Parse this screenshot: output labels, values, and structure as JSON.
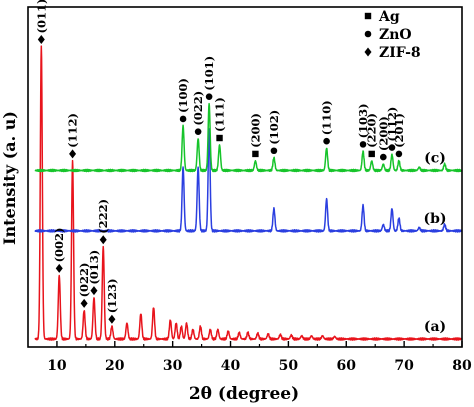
{
  "chart_data": {
    "type": "line",
    "title": "",
    "xlabel": "2θ (degree)",
    "ylabel": "Intensity (a. u)",
    "xlim": [
      5,
      80
    ],
    "xticks": [
      10,
      20,
      30,
      40,
      50,
      60,
      70,
      80
    ],
    "yticks": [],
    "grid": false,
    "legend": {
      "placement": "top-right",
      "items": [
        {
          "marker": "square",
          "label": "Ag"
        },
        {
          "marker": "circle",
          "label": "ZnO"
        },
        {
          "marker": "diamond",
          "label": "ZIF-8"
        }
      ]
    },
    "series": [
      {
        "label": "(a)",
        "color": "#e8141c",
        "baseline": 0.0,
        "peaks": [
          [
            7.3,
            0.92
          ],
          [
            10.4,
            0.2
          ],
          [
            12.7,
            0.56
          ],
          [
            14.7,
            0.09
          ],
          [
            16.4,
            0.13
          ],
          [
            18.0,
            0.29
          ],
          [
            19.5,
            0.04
          ],
          [
            22.1,
            0.05
          ],
          [
            24.5,
            0.08
          ],
          [
            26.7,
            0.1
          ],
          [
            29.6,
            0.06
          ],
          [
            30.6,
            0.05
          ],
          [
            31.5,
            0.04
          ],
          [
            32.4,
            0.05
          ],
          [
            33.5,
            0.03
          ],
          [
            34.8,
            0.04
          ],
          [
            36.5,
            0.03
          ],
          [
            37.8,
            0.03
          ],
          [
            39.6,
            0.025
          ],
          [
            41.5,
            0.02
          ],
          [
            43.0,
            0.02
          ],
          [
            44.7,
            0.018
          ],
          [
            46.5,
            0.016
          ],
          [
            48.6,
            0.014
          ],
          [
            50.5,
            0.012
          ],
          [
            52.3,
            0.01
          ],
          [
            54.0,
            0.01
          ],
          [
            55.9,
            0.01
          ],
          [
            58.0,
            0.008
          ]
        ]
      },
      {
        "label": "(b)",
        "color": "#2b3fe0",
        "baseline": 0.34,
        "peaks": [
          [
            31.8,
            0.2
          ],
          [
            34.4,
            0.2
          ],
          [
            36.3,
            0.32
          ],
          [
            47.5,
            0.07
          ],
          [
            56.6,
            0.1
          ],
          [
            62.9,
            0.08
          ],
          [
            66.4,
            0.02
          ],
          [
            67.9,
            0.07
          ],
          [
            69.1,
            0.04
          ],
          [
            72.6,
            0.01
          ],
          [
            77.0,
            0.02
          ]
        ]
      },
      {
        "label": "(c)",
        "color": "#17c42b",
        "baseline": 0.53,
        "peaks": [
          [
            31.8,
            0.14
          ],
          [
            34.4,
            0.1
          ],
          [
            36.3,
            0.21
          ],
          [
            38.1,
            0.08
          ],
          [
            44.3,
            0.03
          ],
          [
            47.5,
            0.04
          ],
          [
            56.6,
            0.07
          ],
          [
            62.9,
            0.06
          ],
          [
            64.4,
            0.03
          ],
          [
            66.4,
            0.02
          ],
          [
            67.9,
            0.05
          ],
          [
            69.1,
            0.03
          ],
          [
            72.6,
            0.01
          ],
          [
            77.0,
            0.02
          ]
        ]
      }
    ],
    "annotations": [
      {
        "series": "(a)",
        "x": 7.3,
        "label": "(011)",
        "marker": "diamond"
      },
      {
        "series": "(a)",
        "x": 10.4,
        "label": "(002)",
        "marker": "diamond"
      },
      {
        "series": "(a)",
        "x": 12.7,
        "label": "(112)",
        "marker": "diamond"
      },
      {
        "series": "(a)",
        "x": 14.7,
        "label": "(022)",
        "marker": "diamond"
      },
      {
        "series": "(a)",
        "x": 16.4,
        "label": "(013)",
        "marker": "diamond"
      },
      {
        "series": "(a)",
        "x": 18.0,
        "label": "(222)",
        "marker": "diamond"
      },
      {
        "series": "(a)",
        "x": 19.5,
        "label": "(123)",
        "marker": "diamond"
      },
      {
        "series": "(c)",
        "x": 31.8,
        "label": "(100)",
        "marker": "circle"
      },
      {
        "series": "(c)",
        "x": 34.4,
        "label": "(022)",
        "marker": "circle"
      },
      {
        "series": "(c)",
        "x": 36.3,
        "label": "(101)",
        "marker": "circle"
      },
      {
        "series": "(c)",
        "x": 38.1,
        "label": "(111)",
        "marker": "square"
      },
      {
        "series": "(c)",
        "x": 44.3,
        "label": "(200)",
        "marker": "square"
      },
      {
        "series": "(c)",
        "x": 47.5,
        "label": "(102)",
        "marker": "circle"
      },
      {
        "series": "(c)",
        "x": 56.6,
        "label": "(110)",
        "marker": "circle"
      },
      {
        "series": "(c)",
        "x": 62.9,
        "label": "(103)",
        "marker": "circle"
      },
      {
        "series": "(c)",
        "x": 64.4,
        "label": "(220)",
        "marker": "square"
      },
      {
        "series": "(c)",
        "x": 66.4,
        "label": "(200)",
        "marker": "circle"
      },
      {
        "series": "(c)",
        "x": 67.9,
        "label": "(112)",
        "marker": "circle"
      },
      {
        "series": "(c)",
        "x": 69.1,
        "label": "(201)",
        "marker": "circle"
      }
    ]
  }
}
